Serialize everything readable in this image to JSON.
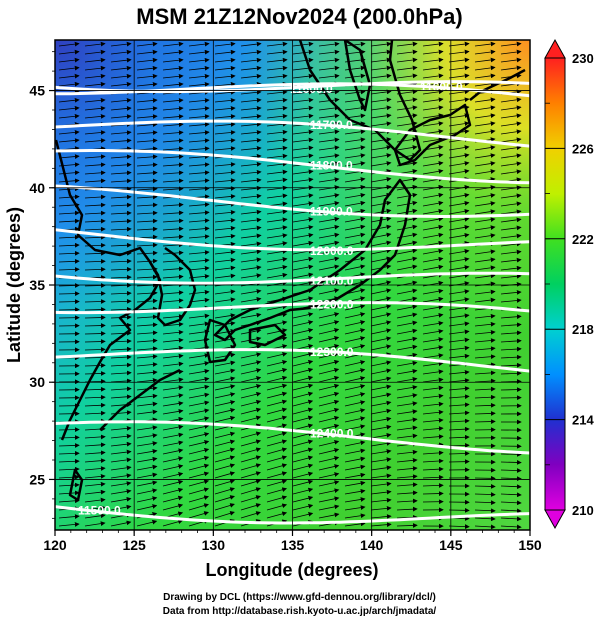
{
  "title": "MSM 21Z12Nov2024 (200.0hPa)",
  "credits": {
    "line1": "Drawing by DCL (https://www.gfd-dennou.org/library/dcl/)",
    "line2": "Data from http://database.rish.kyoto-u.ac.jp/arch/jmadata/"
  },
  "map": {
    "x_axis": {
      "label": "Longitude (degrees)",
      "min": 120,
      "max": 150,
      "ticks": [
        "120",
        "125",
        "130",
        "135",
        "140",
        "145",
        "150"
      ]
    },
    "y_axis": {
      "label": "Latitude  (degrees)",
      "min": 22.4,
      "max": 47.6,
      "ticks": [
        "25",
        "30",
        "35",
        "40",
        "45"
      ]
    },
    "grid": true
  },
  "colorbar": {
    "min": 210,
    "max": 230,
    "labels": [
      "210",
      "214",
      "218",
      "222",
      "226",
      "230"
    ]
  },
  "contours": [
    {
      "label": "11500.0",
      "lat": 23.6
    },
    {
      "label": "11600.0",
      "lat": 45.6
    },
    {
      "label": "11600.0",
      "lat": 45.3
    },
    {
      "label": "11700.0",
      "lat": 43.2
    },
    {
      "label": "11800.0",
      "lat": 41.5
    },
    {
      "label": "11900.0",
      "lat": 39.6
    },
    {
      "label": "12000.0",
      "lat": 37.7
    },
    {
      "label": "12100.0",
      "lat": 35.8
    },
    {
      "label": "12200.0",
      "lat": 34.1
    },
    {
      "label": "12300.0",
      "lat": 31.5
    },
    {
      "label": "12400.0",
      "lat": 27.6
    }
  ]
}
